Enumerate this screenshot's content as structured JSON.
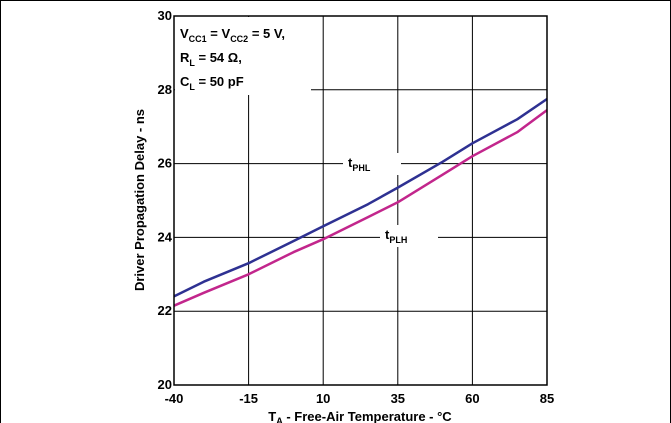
{
  "chart_data": {
    "type": "line",
    "xlabel": {
      "main": "T",
      "sub": "A",
      "rest": " - Free-Air Temperature - °C"
    },
    "ylabel": "Driver Propagation Delay - ns",
    "xlim": [
      -40,
      85
    ],
    "ylim": [
      20,
      30
    ],
    "xticks": [
      -40,
      -15,
      10,
      35,
      60,
      85
    ],
    "yticks": [
      20,
      22,
      24,
      26,
      28,
      30
    ],
    "grid": true,
    "conditions": [
      {
        "parts": [
          {
            "t": "V"
          },
          {
            "t": "CC1",
            "sub": true
          },
          {
            "t": " = V"
          },
          {
            "t": "CC2",
            "sub": true
          },
          {
            "t": " = 5 V,"
          }
        ]
      },
      {
        "parts": [
          {
            "t": "R"
          },
          {
            "t": "L",
            "sub": true
          },
          {
            "t": " = 54 Ω,"
          }
        ]
      },
      {
        "parts": [
          {
            "t": "C"
          },
          {
            "t": "L",
            "sub": true
          },
          {
            "t": " = 50 pF"
          }
        ]
      }
    ],
    "series": [
      {
        "name": "tPHL",
        "label_main": "t",
        "label_sub": "PHL",
        "color": "#2e3192",
        "x": [
          -40,
          -30,
          -15,
          0,
          10,
          25,
          35,
          50,
          60,
          75,
          85
        ],
        "y": [
          22.4,
          22.8,
          23.3,
          23.9,
          24.3,
          24.9,
          25.35,
          26.05,
          26.55,
          27.2,
          27.75
        ]
      },
      {
        "name": "tPLH",
        "label_main": "t",
        "label_sub": "PLH",
        "color": "#c2268c",
        "x": [
          -40,
          -30,
          -15,
          0,
          10,
          25,
          35,
          50,
          60,
          75,
          85
        ],
        "y": [
          22.15,
          22.5,
          23.0,
          23.6,
          23.95,
          24.55,
          24.95,
          25.7,
          26.2,
          26.85,
          27.45
        ]
      }
    ]
  }
}
